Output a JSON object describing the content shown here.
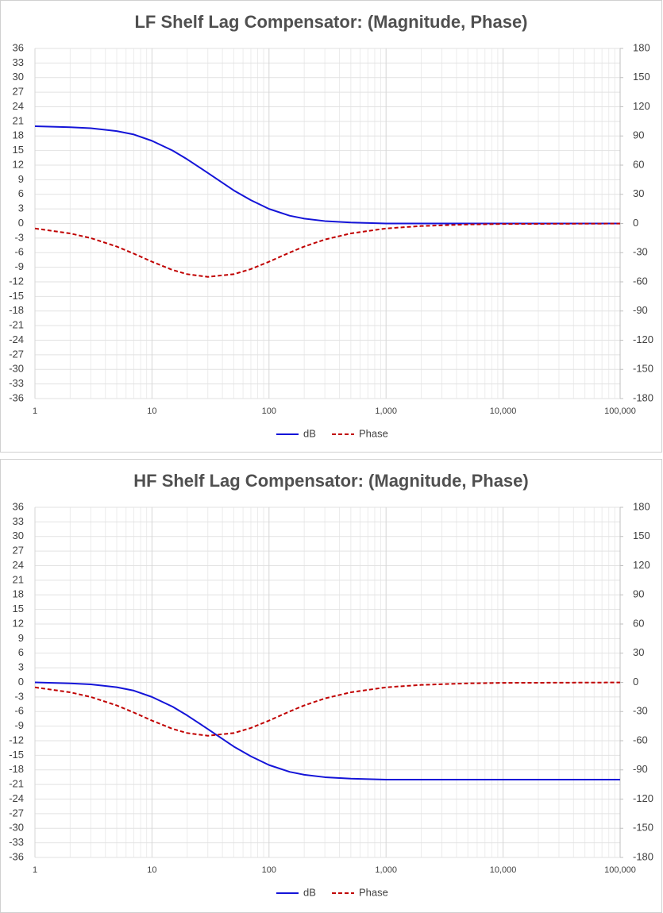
{
  "chart_data": [
    {
      "type": "line",
      "title": "LF Shelf Lag Compensator: (Magnitude, Phase)",
      "x": [
        1,
        2,
        3,
        5,
        7,
        10,
        15,
        20,
        30,
        50,
        70,
        100,
        150,
        200,
        300,
        500,
        1000,
        2000,
        5000,
        10000,
        100000
      ],
      "series": [
        {
          "name": "dB",
          "color": "#1414d8",
          "line_style": "solid",
          "values": [
            20.0,
            19.8,
            19.6,
            19.0,
            18.3,
            17.0,
            15.0,
            13.2,
            10.4,
            6.8,
            4.8,
            3.0,
            1.6,
            1.0,
            0.5,
            0.2,
            0.0,
            0.0,
            0.0,
            0.0,
            0.0
          ]
        },
        {
          "name": "Phase",
          "color": "#c00000",
          "line_style": "dashed",
          "axis": "y2",
          "values": [
            -5.1,
            -10.2,
            -15.0,
            -23.7,
            -31.0,
            -39.3,
            -47.8,
            -52.1,
            -54.9,
            -52.1,
            -46.9,
            -39.3,
            -29.9,
            -23.7,
            -16.5,
            -10.2,
            -5.1,
            -2.6,
            -1.0,
            -0.5,
            -0.1
          ]
        }
      ],
      "xscale": "log",
      "xlim": [
        1,
        100000
      ],
      "xticks": [
        1,
        10,
        100,
        {
          "value": 1000,
          "label": "1,000"
        },
        {
          "value": 10000,
          "label": "10,000"
        },
        {
          "value": 100000,
          "label": "100,000"
        }
      ],
      "ylim": [
        -36,
        36
      ],
      "yticks": [
        -36,
        -33,
        -30,
        -27,
        -24,
        -21,
        -18,
        -15,
        -12,
        -9,
        -6,
        -3,
        0,
        3,
        6,
        9,
        12,
        15,
        18,
        21,
        24,
        27,
        30,
        33,
        36
      ],
      "y2lim": [
        -180,
        180
      ],
      "y2ticks": [
        -180,
        -150,
        -120,
        -90,
        -60,
        -30,
        0,
        30,
        60,
        90,
        120,
        150,
        180
      ],
      "grid": true,
      "minor_grid": true,
      "legend": "bottom"
    },
    {
      "type": "line",
      "title": "HF Shelf Lag Compensator: (Magnitude, Phase)",
      "x": [
        1,
        2,
        3,
        5,
        7,
        10,
        15,
        20,
        30,
        50,
        70,
        100,
        150,
        200,
        300,
        500,
        1000,
        2000,
        5000,
        10000,
        100000
      ],
      "series": [
        {
          "name": "dB",
          "color": "#1414d8",
          "line_style": "solid",
          "values": [
            0.0,
            -0.2,
            -0.4,
            -1.0,
            -1.7,
            -3.0,
            -5.0,
            -6.8,
            -9.6,
            -13.2,
            -15.2,
            -17.0,
            -18.4,
            -19.0,
            -19.5,
            -19.8,
            -20.0,
            -20.0,
            -20.0,
            -20.0,
            -20.0
          ]
        },
        {
          "name": "Phase",
          "color": "#c00000",
          "line_style": "dashed",
          "axis": "y2",
          "values": [
            -5.1,
            -10.2,
            -15.0,
            -23.7,
            -31.0,
            -39.3,
            -47.8,
            -52.1,
            -54.9,
            -52.1,
            -46.9,
            -39.3,
            -29.9,
            -23.7,
            -16.5,
            -10.2,
            -5.1,
            -2.6,
            -1.0,
            -0.5,
            -0.1
          ]
        }
      ],
      "xscale": "log",
      "xlim": [
        1,
        100000
      ],
      "xticks": [
        1,
        10,
        100,
        {
          "value": 1000,
          "label": "1,000"
        },
        {
          "value": 10000,
          "label": "10,000"
        },
        {
          "value": 100000,
          "label": "100,000"
        }
      ],
      "ylim": [
        -36,
        36
      ],
      "yticks": [
        -36,
        -33,
        -30,
        -27,
        -24,
        -21,
        -18,
        -15,
        -12,
        -9,
        -6,
        -3,
        0,
        3,
        6,
        9,
        12,
        15,
        18,
        21,
        24,
        27,
        30,
        33,
        36
      ],
      "y2lim": [
        -180,
        180
      ],
      "y2ticks": [
        -180,
        -150,
        -120,
        -90,
        -60,
        -30,
        0,
        30,
        60,
        90,
        120,
        150,
        180
      ],
      "grid": true,
      "minor_grid": true,
      "legend": "bottom"
    }
  ]
}
